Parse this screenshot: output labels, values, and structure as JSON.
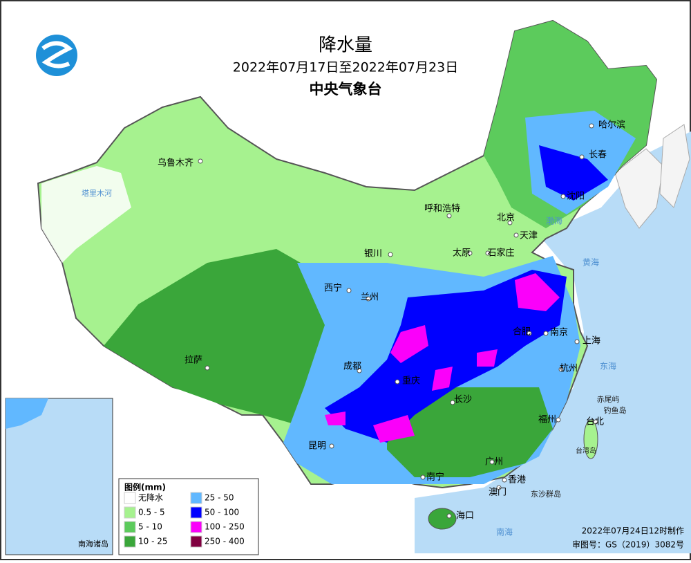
{
  "header": {
    "title": "降水量",
    "period": "2022年07月17日至2022年07月23日",
    "agency": "中央气象台"
  },
  "legend": {
    "title": "图例(mm)",
    "items": [
      {
        "label": "无降水",
        "color": "#ffffff"
      },
      {
        "label": "0.5 - 5",
        "color": "#a6f28f"
      },
      {
        "label": "5 - 10",
        "color": "#5ccb5c"
      },
      {
        "label": "10 - 25",
        "color": "#3aa63a"
      },
      {
        "label": "25 - 50",
        "color": "#61b8ff"
      },
      {
        "label": "50 - 100",
        "color": "#0000ff"
      },
      {
        "label": "100 - 250",
        "color": "#fa00fa"
      },
      {
        "label": "250 - 400",
        "color": "#800040"
      }
    ]
  },
  "cities": [
    "乌鲁木齐",
    "拉萨",
    "西宁",
    "兰州",
    "银川",
    "呼和浩特",
    "北京",
    "天津",
    "太原",
    "石家庄",
    "哈尔滨",
    "长春",
    "沈阳",
    "成都",
    "重庆",
    "长沙",
    "合肥",
    "南京",
    "上海",
    "杭州",
    "福州",
    "台北",
    "广州",
    "香港",
    "澳门",
    "南宁",
    "海口",
    "昆明"
  ],
  "places": [
    "赤尾屿",
    "钓鱼岛",
    "台湾岛",
    "东沙群岛",
    "塔里木河"
  ],
  "seas": [
    "渤海",
    "黄海",
    "东海",
    "南海"
  ],
  "inset": {
    "label": "南海诸岛"
  },
  "footer": {
    "made": "2022年07月24日12时制作",
    "approval": "审图号：GS（2019）3082号"
  }
}
